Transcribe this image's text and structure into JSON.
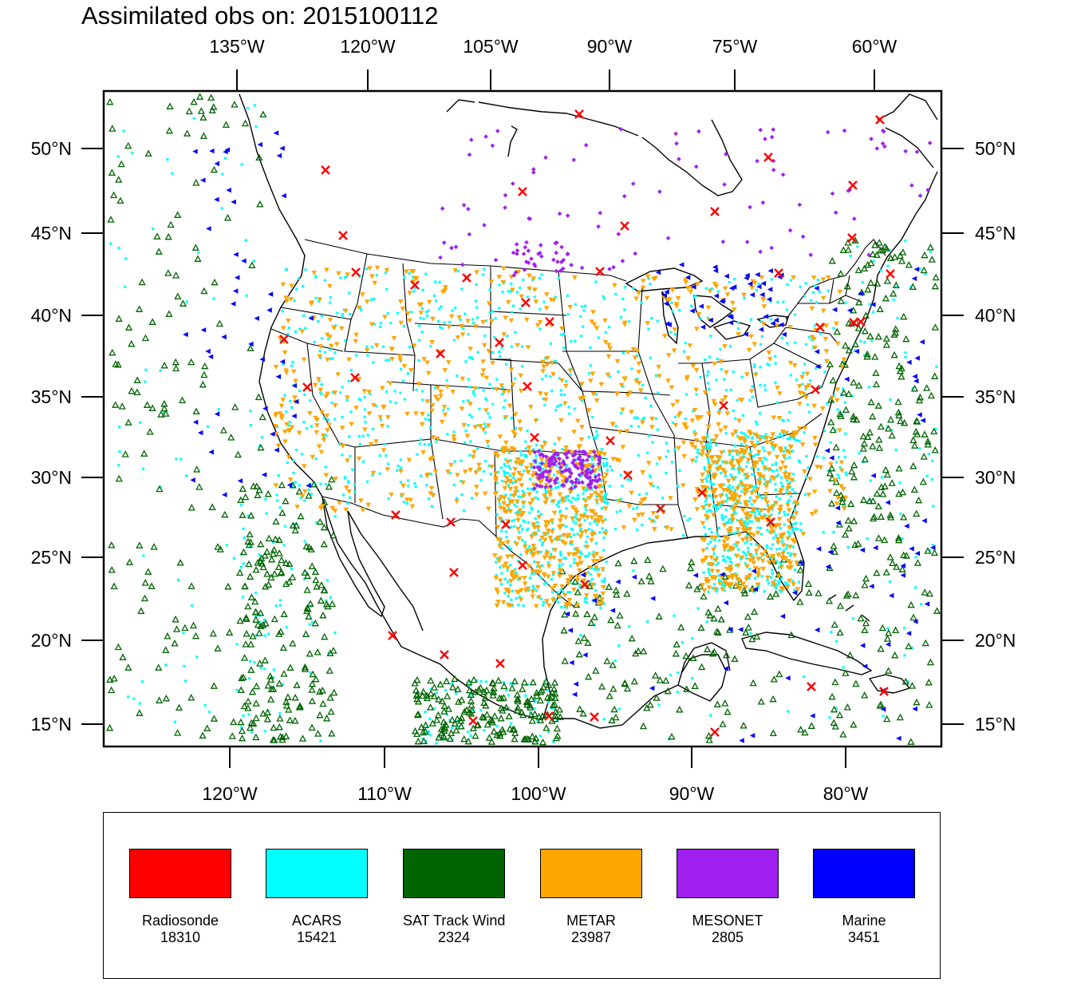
{
  "title": "Assimilated obs on: 2015100112",
  "map": {
    "region": "Continental United States, Mexico, Gulf of Mexico and adjacent Pacific/Atlantic",
    "top_axis_labels": [
      "135°W",
      "120°W",
      "105°W",
      "90°W",
      "75°W",
      "60°W"
    ],
    "bottom_axis_labels": [
      "120°W",
      "110°W",
      "100°W",
      "90°W",
      "80°W"
    ],
    "left_axis_labels": [
      "50°N",
      "45°N",
      "40°N",
      "35°N",
      "30°N",
      "25°N",
      "20°N",
      "15°N"
    ],
    "right_axis_labels": [
      "50°N",
      "45°N",
      "40°N",
      "35°N",
      "30°N",
      "25°N",
      "20°N",
      "15°N"
    ]
  },
  "legend": [
    {
      "name": "Radiosonde",
      "count": "18310",
      "color": "#ff0000",
      "marker": "x-cross"
    },
    {
      "name": "ACARS",
      "count": "15421",
      "color": "#00ffff",
      "marker": "dot"
    },
    {
      "name": "SAT Track Wind",
      "count": "2324",
      "color": "#006400",
      "marker": "triangle-up-outline"
    },
    {
      "name": "METAR",
      "count": "23987",
      "color": "#ffa500",
      "marker": "triangle-down"
    },
    {
      "name": "MESONET",
      "count": "2805",
      "color": "#a020f0",
      "marker": "diamond"
    },
    {
      "name": "Marine",
      "count": "3451",
      "color": "#0000ff",
      "marker": "triangle-left"
    }
  ]
}
